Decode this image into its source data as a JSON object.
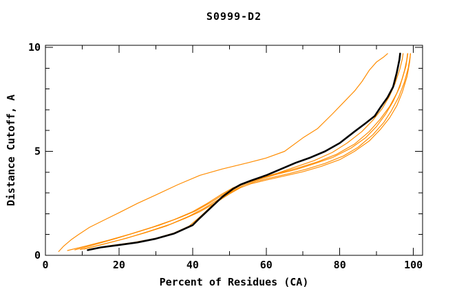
{
  "chart_data": {
    "type": "line",
    "title": "S0999-D2",
    "xlabel": "Percent of Residues (CA)",
    "ylabel": "Distance Cutoff, A",
    "xlim": [
      0,
      102.5
    ],
    "ylim": [
      0,
      10.1
    ],
    "x_major_ticks": [
      0,
      20,
      40,
      60,
      80,
      100
    ],
    "x_minor_ticks": [
      10,
      30,
      50,
      70,
      90
    ],
    "y_major_ticks": [
      0,
      5,
      10
    ],
    "y_minor_ticks": [
      1,
      2,
      3,
      4,
      6,
      7,
      8,
      9
    ],
    "grid": false,
    "legend": "none",
    "colors": {
      "frame": "#000000",
      "model_curve": "#000000",
      "other_curves": "#ff8c00"
    },
    "series": [
      {
        "name": "orange-outlier",
        "color": "#ff8c00",
        "width": 1.2,
        "points": [
          [
            3.6,
            0.18
          ],
          [
            5,
            0.45
          ],
          [
            7,
            0.75
          ],
          [
            9,
            1.0
          ],
          [
            12,
            1.35
          ],
          [
            16,
            1.7
          ],
          [
            20,
            2.05
          ],
          [
            25,
            2.5
          ],
          [
            30,
            2.9
          ],
          [
            36,
            3.4
          ],
          [
            42,
            3.85
          ],
          [
            48,
            4.15
          ],
          [
            55,
            4.45
          ],
          [
            60,
            4.68
          ],
          [
            65,
            5.0
          ],
          [
            70,
            5.65
          ],
          [
            74,
            6.1
          ],
          [
            78,
            6.8
          ],
          [
            81,
            7.35
          ],
          [
            84,
            7.9
          ],
          [
            86,
            8.35
          ],
          [
            88,
            8.9
          ],
          [
            90,
            9.3
          ],
          [
            92,
            9.55
          ],
          [
            93,
            9.7
          ]
        ]
      },
      {
        "name": "orange-1",
        "color": "#ff8c00",
        "width": 1.2,
        "points": [
          [
            8,
            0.26
          ],
          [
            13,
            0.5
          ],
          [
            19,
            0.8
          ],
          [
            25,
            1.12
          ],
          [
            31,
            1.45
          ],
          [
            37,
            1.85
          ],
          [
            41,
            2.15
          ],
          [
            45,
            2.55
          ],
          [
            49,
            3.0
          ],
          [
            52,
            3.3
          ],
          [
            55,
            3.5
          ],
          [
            59,
            3.72
          ],
          [
            64,
            3.98
          ],
          [
            69,
            4.22
          ],
          [
            74,
            4.5
          ],
          [
            79,
            4.85
          ],
          [
            84,
            5.35
          ],
          [
            88,
            5.95
          ],
          [
            91,
            6.55
          ],
          [
            93.5,
            7.15
          ],
          [
            95.5,
            7.8
          ],
          [
            97,
            8.5
          ],
          [
            98,
            9.1
          ],
          [
            98.5,
            9.7
          ]
        ]
      },
      {
        "name": "orange-2",
        "color": "#ff8c00",
        "width": 1.2,
        "points": [
          [
            6,
            0.23
          ],
          [
            11,
            0.45
          ],
          [
            17,
            0.72
          ],
          [
            23,
            1.02
          ],
          [
            29,
            1.35
          ],
          [
            35,
            1.72
          ],
          [
            40,
            2.1
          ],
          [
            44,
            2.5
          ],
          [
            48,
            2.95
          ],
          [
            51,
            3.25
          ],
          [
            54,
            3.45
          ],
          [
            58,
            3.65
          ],
          [
            63,
            3.9
          ],
          [
            68,
            4.12
          ],
          [
            73,
            4.4
          ],
          [
            78,
            4.7
          ],
          [
            83,
            5.15
          ],
          [
            87,
            5.65
          ],
          [
            90,
            6.2
          ],
          [
            92.5,
            6.8
          ],
          [
            94.5,
            7.4
          ],
          [
            96.3,
            8.1
          ],
          [
            97.6,
            8.9
          ],
          [
            98.2,
            9.4
          ],
          [
            98.4,
            9.7
          ]
        ]
      },
      {
        "name": "orange-3",
        "color": "#ff8c00",
        "width": 1.2,
        "points": [
          [
            12,
            0.3
          ],
          [
            18,
            0.48
          ],
          [
            24,
            0.62
          ],
          [
            30,
            0.82
          ],
          [
            35,
            1.08
          ],
          [
            39,
            1.4
          ],
          [
            42,
            1.85
          ],
          [
            45,
            2.35
          ],
          [
            48,
            2.8
          ],
          [
            51,
            3.15
          ],
          [
            54,
            3.45
          ],
          [
            58,
            3.7
          ],
          [
            63,
            3.95
          ],
          [
            68,
            4.25
          ],
          [
            73,
            4.55
          ],
          [
            78,
            4.95
          ],
          [
            82,
            5.4
          ],
          [
            86,
            5.95
          ],
          [
            89,
            6.5
          ],
          [
            91.5,
            7.05
          ],
          [
            93.5,
            7.65
          ],
          [
            95,
            8.25
          ],
          [
            96.3,
            8.95
          ],
          [
            97,
            9.45
          ],
          [
            97.2,
            9.7
          ]
        ]
      },
      {
        "name": "orange-4",
        "color": "#ff8c00",
        "width": 1.2,
        "points": [
          [
            9.5,
            0.28
          ],
          [
            15,
            0.5
          ],
          [
            21,
            0.78
          ],
          [
            27,
            1.08
          ],
          [
            33,
            1.42
          ],
          [
            38,
            1.78
          ],
          [
            42,
            2.1
          ],
          [
            46,
            2.5
          ],
          [
            50,
            2.95
          ],
          [
            53,
            3.25
          ],
          [
            56,
            3.45
          ],
          [
            60,
            3.62
          ],
          [
            65,
            3.82
          ],
          [
            70,
            4.02
          ],
          [
            75,
            4.28
          ],
          [
            80,
            4.6
          ],
          [
            84,
            5.0
          ],
          [
            88,
            5.5
          ],
          [
            91,
            6.05
          ],
          [
            93.5,
            6.6
          ],
          [
            95.5,
            7.2
          ],
          [
            97,
            7.85
          ],
          [
            98.3,
            8.6
          ],
          [
            99,
            9.3
          ],
          [
            99.2,
            9.7
          ]
        ]
      },
      {
        "name": "orange-5",
        "color": "#ff8c00",
        "width": 1.2,
        "points": [
          [
            10.5,
            0.3
          ],
          [
            16,
            0.55
          ],
          [
            22,
            0.82
          ],
          [
            28,
            1.15
          ],
          [
            34,
            1.5
          ],
          [
            39,
            1.88
          ],
          [
            43,
            2.25
          ],
          [
            47,
            2.68
          ],
          [
            51,
            3.1
          ],
          [
            54,
            3.38
          ],
          [
            57,
            3.55
          ],
          [
            61,
            3.72
          ],
          [
            66,
            3.92
          ],
          [
            71,
            4.15
          ],
          [
            76,
            4.42
          ],
          [
            81,
            4.78
          ],
          [
            85,
            5.2
          ],
          [
            89,
            5.8
          ],
          [
            92,
            6.4
          ],
          [
            94,
            6.95
          ],
          [
            96,
            7.6
          ],
          [
            97.5,
            8.3
          ],
          [
            98.6,
            9.0
          ],
          [
            99.1,
            9.55
          ],
          [
            99.2,
            9.7
          ]
        ]
      },
      {
        "name": "black-model",
        "color": "#000000",
        "width": 2.6,
        "points": [
          [
            11.5,
            0.25
          ],
          [
            15,
            0.38
          ],
          [
            20,
            0.5
          ],
          [
            25,
            0.62
          ],
          [
            30,
            0.8
          ],
          [
            35,
            1.05
          ],
          [
            40,
            1.45
          ],
          [
            42,
            1.8
          ],
          [
            45,
            2.3
          ],
          [
            48,
            2.8
          ],
          [
            51,
            3.2
          ],
          [
            53,
            3.4
          ],
          [
            56,
            3.6
          ],
          [
            60,
            3.85
          ],
          [
            64,
            4.15
          ],
          [
            68,
            4.45
          ],
          [
            72,
            4.7
          ],
          [
            76,
            5.0
          ],
          [
            80,
            5.4
          ],
          [
            84,
            5.95
          ],
          [
            87,
            6.35
          ],
          [
            89.5,
            6.7
          ],
          [
            91,
            7.1
          ],
          [
            93,
            7.6
          ],
          [
            94.5,
            8.1
          ],
          [
            95.5,
            8.8
          ],
          [
            96.2,
            9.4
          ],
          [
            96.4,
            9.7
          ]
        ]
      }
    ]
  }
}
